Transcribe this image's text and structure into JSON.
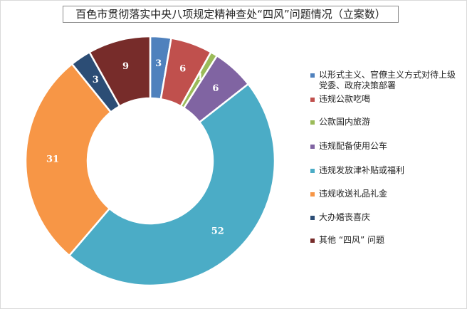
{
  "chart_data": {
    "type": "pie",
    "subtype": "donut",
    "title": "百色市贯彻落实中央八项规定精神查处“四风”问题情况（立案数）",
    "legend_position": "right",
    "series": [
      {
        "name": "以形式主义、官僚主义方式对待上级党委、政府决策部署",
        "value": 3,
        "color": "#4F81BD"
      },
      {
        "name": "违规公款吃喝",
        "value": 6,
        "color": "#C0504D"
      },
      {
        "name": "公款国内旅游",
        "value": 1,
        "color": "#9BBB59"
      },
      {
        "name": "违规配备使用公车",
        "value": 6,
        "color": "#8064A2"
      },
      {
        "name": "违规发放津补贴或福利",
        "value": 52,
        "color": "#4BACC6"
      },
      {
        "name": "违规收送礼品礼金",
        "value": 31,
        "color": "#F79646"
      },
      {
        "name": "大办婚丧喜庆",
        "value": 3,
        "color": "#2C4D75"
      },
      {
        "name": "其他 “四风” 问题",
        "value": 9,
        "color": "#772C2A"
      }
    ]
  }
}
